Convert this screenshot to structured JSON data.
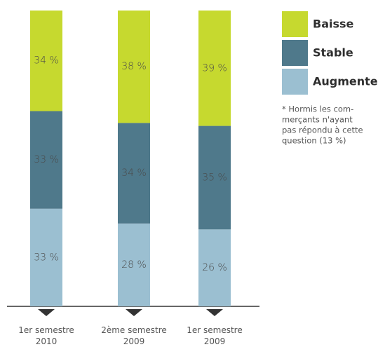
{
  "chart_data": {
    "type": "stacked_bar",
    "categories": [
      "1er semestre 2010",
      "2ème semestre 2009",
      "1er semestre 2009"
    ],
    "ylim": [
      0,
      100
    ],
    "series": [
      {
        "name": "Augmente",
        "color": "#9bbfd1",
        "values": [
          33,
          28,
          26
        ],
        "value_labels": [
          "33 %",
          "28 %",
          "26 %"
        ]
      },
      {
        "name": "Stable",
        "color": "#4f798b",
        "values": [
          33,
          34,
          35
        ],
        "value_labels": [
          "33 %",
          "34 %",
          "35 %"
        ]
      },
      {
        "name": "Baisse",
        "color": "#c6d92f",
        "values": [
          34,
          38,
          39
        ],
        "value_labels": [
          "34 %",
          "38 %",
          "39 %"
        ]
      }
    ],
    "note": [
      "* Hormis les com-",
      "merçants n'ayant",
      "pas répondu à cette",
      "question (13 %)"
    ]
  }
}
